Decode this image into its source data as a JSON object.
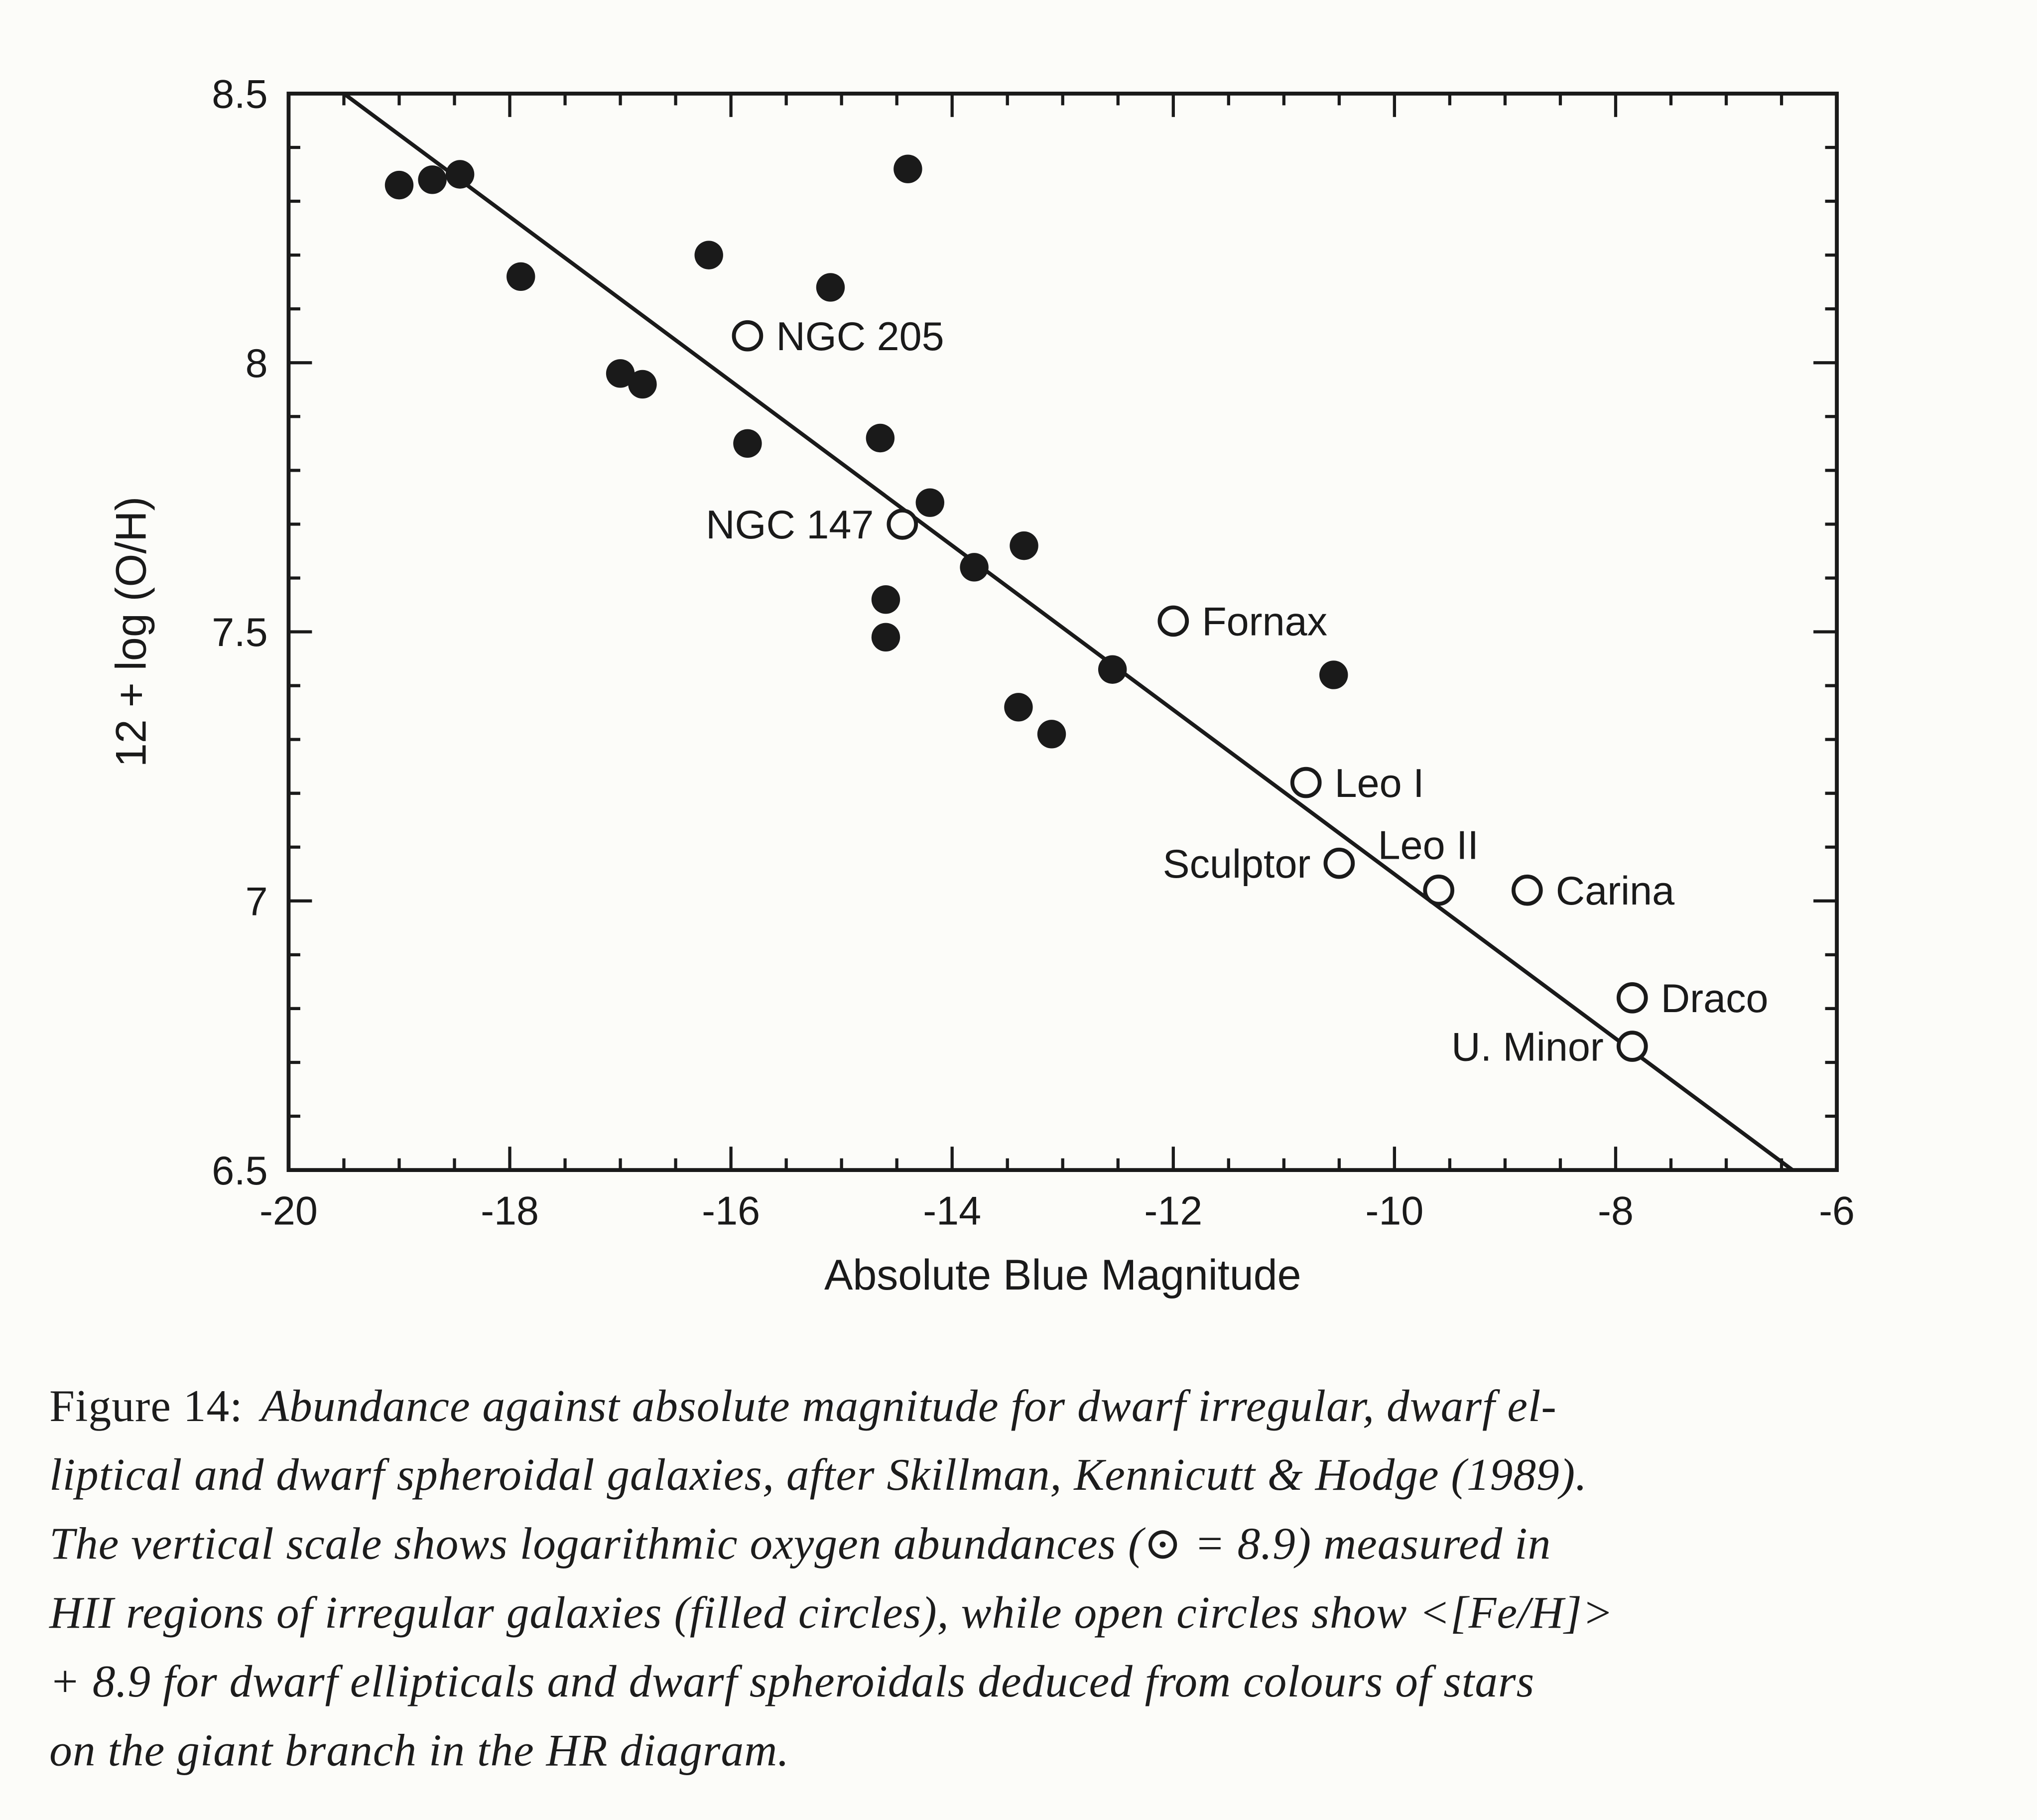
{
  "colors": {
    "ink": "#1a1a1a",
    "paper": "#fcfcf9"
  },
  "figure": {
    "caption_prefix": "Figure 14:",
    "caption_lines": [
      "Abundance against absolute magnitude for dwarf irregular, dwarf el-",
      "liptical and dwarf spheroidal galaxies, after Skillman, Kennicutt & Hodge (1989).",
      "The vertical scale shows logarithmic oxygen abundances (⊙ = 8.9) measured in",
      "HII regions of irregular galaxies (filled circles), while open circles show <[Fe/H]>",
      "+ 8.9 for dwarf ellipticals and dwarf spheroidals deduced from colours of stars",
      "on the giant branch in the HR diagram."
    ]
  },
  "chart_data": {
    "type": "scatter",
    "title": "",
    "xlabel": "Absolute Blue Magnitude",
    "ylabel": "12 + log (O/H)",
    "xlim": [
      -20,
      -6
    ],
    "ylim": [
      6.5,
      8.5
    ],
    "xticks": [
      -20,
      -18,
      -16,
      -14,
      -12,
      -10,
      -8,
      -6
    ],
    "yticks": [
      6.5,
      7,
      7.5,
      8,
      8.5
    ],
    "x_minor_step": 0.5,
    "y_minor_step": 0.1,
    "grid": false,
    "legend": "none",
    "series": [
      {
        "name": "dwarf irregulars (HII region oxygen abundances)",
        "marker": "filled-circle",
        "points": [
          [
            -19.0,
            8.33
          ],
          [
            -18.7,
            8.34
          ],
          [
            -18.45,
            8.35
          ],
          [
            -17.9,
            8.16
          ],
          [
            -17.0,
            7.98
          ],
          [
            -16.8,
            7.96
          ],
          [
            -16.2,
            8.2
          ],
          [
            -15.85,
            7.85
          ],
          [
            -15.1,
            8.14
          ],
          [
            -14.65,
            7.86
          ],
          [
            -14.6,
            7.56
          ],
          [
            -14.6,
            7.49
          ],
          [
            -14.4,
            8.36
          ],
          [
            -14.2,
            7.74
          ],
          [
            -13.8,
            7.62
          ],
          [
            -13.35,
            7.66
          ],
          [
            -13.4,
            7.36
          ],
          [
            -13.1,
            7.31
          ],
          [
            -12.55,
            7.43
          ],
          [
            -10.55,
            7.42
          ]
        ]
      },
      {
        "name": "dwarf ellipticals / spheroidals (<[Fe/H]> + 8.9)",
        "marker": "open-circle",
        "points": [
          {
            "x": -15.85,
            "y": 8.05,
            "label": "NGC 205",
            "label_side": "right"
          },
          {
            "x": -14.45,
            "y": 7.7,
            "label": "NGC 147",
            "label_side": "left"
          },
          {
            "x": -12.0,
            "y": 7.52,
            "label": "Fornax",
            "label_side": "right"
          },
          {
            "x": -10.8,
            "y": 7.22,
            "label": "Leo I",
            "label_side": "right"
          },
          {
            "x": -10.5,
            "y": 7.07,
            "label": "Sculptor",
            "label_side": "left"
          },
          {
            "x": -9.6,
            "y": 7.02,
            "label": "Leo II",
            "label_side": "above"
          },
          {
            "x": -8.8,
            "y": 7.02,
            "label": "Carina",
            "label_side": "right"
          },
          {
            "x": -7.85,
            "y": 6.82,
            "label": "Draco",
            "label_side": "right"
          },
          {
            "x": -7.85,
            "y": 6.73,
            "label": "U. Minor",
            "label_side": "left"
          }
        ]
      }
    ],
    "trend_line": {
      "x1": -19.5,
      "y1": 8.5,
      "x2": -6.4,
      "y2": 6.5
    }
  }
}
